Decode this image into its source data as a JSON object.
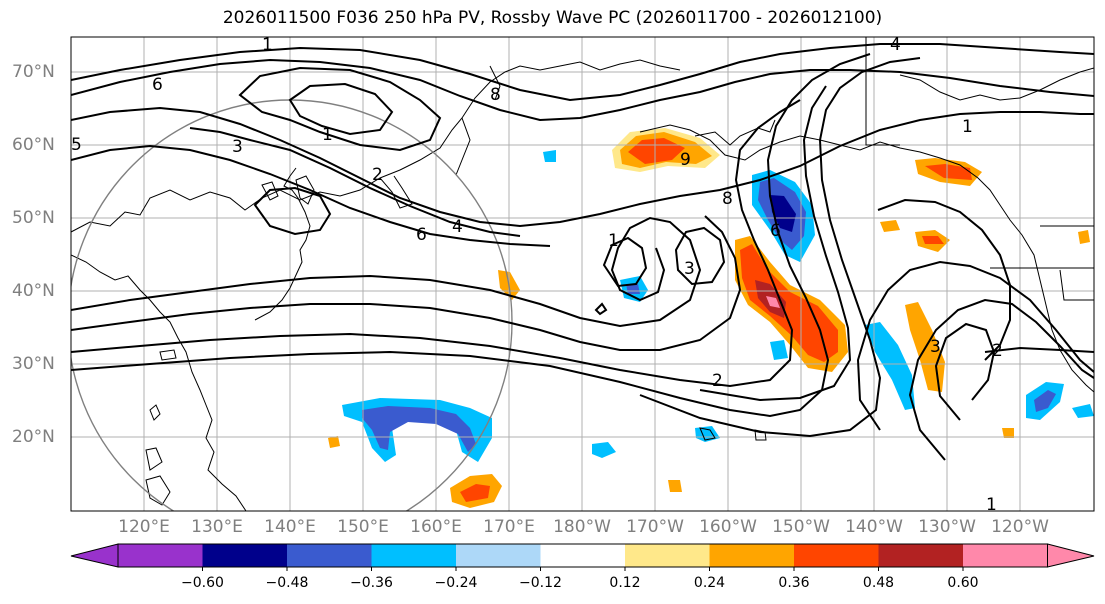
{
  "title": "2026011500 F036 250 hPa PV, Rossby Wave PC (2026011700 - 2026012100)",
  "lat_labels": [
    "70°N",
    "60°N",
    "50°N",
    "40°N",
    "30°N",
    "20°N"
  ],
  "lon_labels": [
    "120°E",
    "130°E",
    "140°E",
    "150°E",
    "160°E",
    "170°E",
    "180°W",
    "170°W",
    "160°W",
    "150°W",
    "140°W",
    "130°W",
    "120°W"
  ],
  "contour_labels": [
    "4",
    "1",
    "6",
    "8",
    "5",
    "1",
    "3",
    "2",
    "6",
    "4",
    "1",
    "9",
    "8",
    "6",
    "3",
    "1",
    "2",
    "2",
    "3",
    "1"
  ],
  "colorbar": {
    "ticks": [
      "−0.60",
      "−0.48",
      "−0.36",
      "−0.24",
      "−0.12",
      "0.12",
      "0.24",
      "0.36",
      "0.48",
      "0.60"
    ],
    "colors": [
      "#9932cc",
      "#00008b",
      "#3a5bcf",
      "#00bfff",
      "#add8f8",
      "#ffffff",
      "#ffe88a",
      "#ffa500",
      "#ff4500",
      "#b22222",
      "#ff88aa"
    ]
  },
  "map_data": {
    "lat_range": [
      10,
      75
    ],
    "lon_range": [
      112,
      252
    ],
    "contour_variable": "250 hPa PV",
    "shaded_variable": "Rossby Wave PC"
  }
}
